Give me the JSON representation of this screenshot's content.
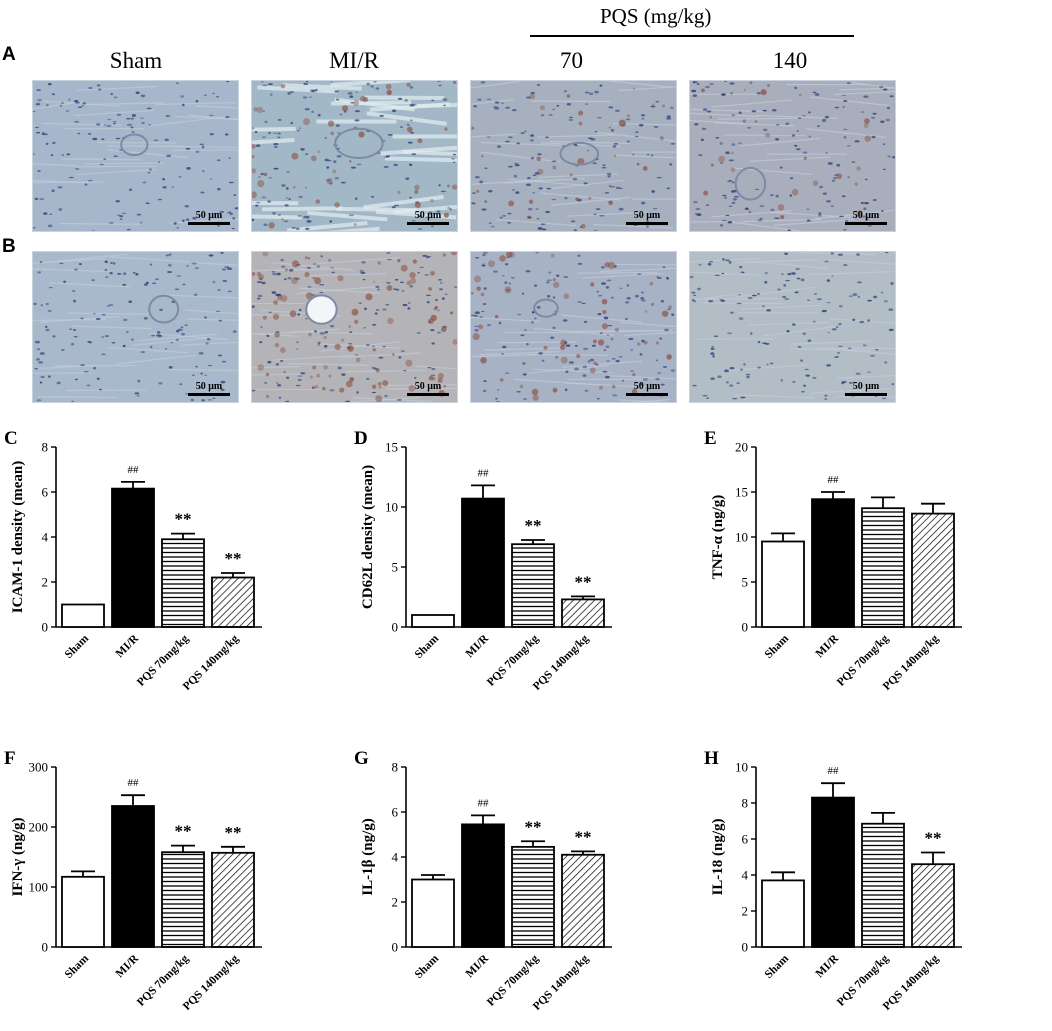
{
  "figure": {
    "row_a_letter": "A",
    "row_b_letter": "B",
    "group_labels": [
      "Sham",
      "MI/R",
      "70",
      "140"
    ],
    "pqs_header": "PQS (mg/kg)",
    "scale_bar_label": "50 μm"
  },
  "micrographs": {
    "row_a": [
      {
        "group": "Sham",
        "base": "#a7b7cb",
        "stain": "none"
      },
      {
        "group": "MI/R",
        "base": "#a2b8c6",
        "stain": "moderate"
      },
      {
        "group": "PQS 70",
        "base": "#a6b0bf",
        "stain": "mild"
      },
      {
        "group": "PQS 140",
        "base": "#a9aebd",
        "stain": "mild"
      }
    ],
    "row_b": [
      {
        "group": "Sham",
        "base": "#a9b9cc",
        "stain": "none"
      },
      {
        "group": "MI/R",
        "base": "#b4b4b8",
        "stain": "strong"
      },
      {
        "group": "PQS 70",
        "base": "#a7b2c5",
        "stain": "moderate"
      },
      {
        "group": "PQS 140",
        "base": "#b3bdc6",
        "stain": "none"
      }
    ]
  },
  "colors": {
    "bar_solid": "#000000",
    "bar_open": "#ffffff",
    "axis": "#000000"
  },
  "chart_data": [
    {
      "panel": "C",
      "type": "bar",
      "categories": [
        "Sham",
        "MI/R",
        "PQS 70mg/kg",
        "PQS 140mg/kg"
      ],
      "values": [
        1.0,
        6.15,
        3.9,
        2.2
      ],
      "errors": [
        0,
        0.3,
        0.25,
        0.2
      ],
      "annotations": [
        "",
        "##",
        "**",
        "**"
      ],
      "ylabel": "ICAM-1 density (mean)",
      "ylim": [
        0,
        8
      ],
      "yticks": [
        0,
        2,
        4,
        6,
        8
      ],
      "fills": [
        "white",
        "black",
        "hlines",
        "diag"
      ]
    },
    {
      "panel": "D",
      "type": "bar",
      "categories": [
        "Sham",
        "MI/R",
        "PQS 70mg/kg",
        "PQS 140mg/kg"
      ],
      "values": [
        1.0,
        10.7,
        6.9,
        2.3
      ],
      "errors": [
        0,
        1.1,
        0.35,
        0.25
      ],
      "annotations": [
        "",
        "##",
        "**",
        "**"
      ],
      "ylabel": "CD62L density (mean)",
      "ylim": [
        0,
        15
      ],
      "yticks": [
        0,
        5,
        10,
        15
      ],
      "fills": [
        "white",
        "black",
        "hlines",
        "diag"
      ]
    },
    {
      "panel": "E",
      "type": "bar",
      "categories": [
        "Sham",
        "MI/R",
        "PQS 70mg/kg",
        "PQS 140mg/kg"
      ],
      "values": [
        9.5,
        14.2,
        13.2,
        12.6
      ],
      "errors": [
        0.9,
        0.8,
        1.2,
        1.1
      ],
      "annotations": [
        "",
        "##",
        "",
        ""
      ],
      "ylabel": "TNF-α (ng/g)",
      "ylim": [
        0,
        20
      ],
      "yticks": [
        0,
        5,
        10,
        15,
        20
      ],
      "fills": [
        "white",
        "black",
        "hlines",
        "diag"
      ]
    },
    {
      "panel": "F",
      "type": "bar",
      "categories": [
        "Sham",
        "MI/R",
        "PQS 70mg/kg",
        "PQS 140mg/kg"
      ],
      "values": [
        117,
        235,
        158,
        157
      ],
      "errors": [
        9,
        18,
        11,
        10
      ],
      "annotations": [
        "",
        "##",
        "**",
        "**"
      ],
      "ylabel": "IFN-γ (ng/g)",
      "ylim": [
        0,
        300
      ],
      "yticks": [
        0,
        100,
        200,
        300
      ],
      "fills": [
        "white",
        "black",
        "hlines",
        "diag"
      ]
    },
    {
      "panel": "G",
      "type": "bar",
      "categories": [
        "Sham",
        "MI/R",
        "PQS 70mg/kg",
        "PQS 140mg/kg"
      ],
      "values": [
        3.0,
        5.45,
        4.45,
        4.1
      ],
      "errors": [
        0.2,
        0.4,
        0.25,
        0.15
      ],
      "annotations": [
        "",
        "##",
        "**",
        "**"
      ],
      "ylabel": "IL-1β (ng/g)",
      "ylim": [
        0,
        8
      ],
      "yticks": [
        0,
        2,
        4,
        6,
        8
      ],
      "fills": [
        "white",
        "black",
        "hlines",
        "diag"
      ]
    },
    {
      "panel": "H",
      "type": "bar",
      "categories": [
        "Sham",
        "MI/R",
        "PQS 70mg/kg",
        "PQS 140mg/kg"
      ],
      "values": [
        3.7,
        8.3,
        6.85,
        4.6
      ],
      "errors": [
        0.45,
        0.8,
        0.6,
        0.65
      ],
      "annotations": [
        "",
        "##",
        "",
        "**"
      ],
      "ylabel": "IL-18 (ng/g)",
      "ylim": [
        0,
        10
      ],
      "yticks": [
        0,
        2,
        4,
        6,
        8,
        10
      ],
      "fills": [
        "white",
        "black",
        "hlines",
        "diag"
      ]
    }
  ]
}
